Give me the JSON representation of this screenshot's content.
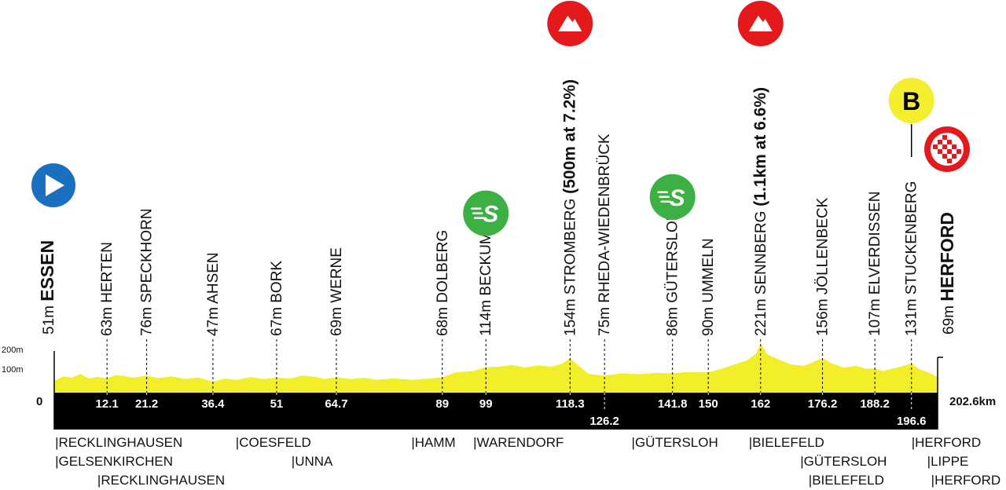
{
  "chart_data": {
    "type": "area",
    "title": "",
    "total_distance_label": "202.6km",
    "start_km_label": "0",
    "y_axis_ticks": [
      "200m",
      "100m"
    ],
    "ylim": [
      0,
      200
    ],
    "xlim": [
      0,
      202.6
    ],
    "colors": {
      "profile": "#f3ee2a",
      "base": "#000000",
      "sprint": "#3cb043",
      "climb": "#e3191b",
      "start": "#1a6fbe",
      "bonus": "#f5ee2e"
    },
    "start": {
      "km": 0,
      "altitude": "51m",
      "name": "ESSEN",
      "icon": "play-icon"
    },
    "finish": {
      "km": 202.6,
      "altitude": "69m",
      "name": "HERFORD",
      "icon": "checkered-flag-icon"
    },
    "places": [
      {
        "km": 12.1,
        "km_label": "12.1",
        "altitude": "63m",
        "name": "HERTEN"
      },
      {
        "km": 21.2,
        "km_label": "21.2",
        "altitude": "76m",
        "name": "SPECKHORN"
      },
      {
        "km": 36.4,
        "km_label": "36.4",
        "altitude": "47m",
        "name": "AHSEN"
      },
      {
        "km": 51,
        "km_label": "51",
        "altitude": "67m",
        "name": "BORK"
      },
      {
        "km": 64.7,
        "km_label": "64.7",
        "altitude": "69m",
        "name": "WERNE"
      },
      {
        "km": 89,
        "km_label": "89",
        "altitude": "68m",
        "name": "DOLBERG"
      },
      {
        "km": 99,
        "km_label": "99",
        "altitude": "114m",
        "name": "BECKUM",
        "marker": "sprint"
      },
      {
        "km": 118.3,
        "km_label": "118.3",
        "altitude": "154m",
        "name": "STROMBERG",
        "climb": "(500m at 7.2%)",
        "marker": "climb"
      },
      {
        "km": 126.2,
        "km_label": "126.2",
        "altitude": "75m",
        "name": "RHEDA-WIEDENBRÜCK",
        "low": true
      },
      {
        "km": 141.8,
        "km_label": "141.8",
        "altitude": "86m",
        "name": "GÜTERSLOH",
        "marker": "sprint"
      },
      {
        "km": 150,
        "km_label": "150",
        "altitude": "90m",
        "name": "UMMELN"
      },
      {
        "km": 162,
        "km_label": "162",
        "altitude": "221m",
        "name": "SENNBERG",
        "climb": "(1.1km at 6.6%)",
        "marker": "climb"
      },
      {
        "km": 176.2,
        "km_label": "176.2",
        "altitude": "156m",
        "name": "JÖLLENBECK"
      },
      {
        "km": 188.2,
        "km_label": "188.2",
        "altitude": "107m",
        "name": "ELVERDISSEN"
      },
      {
        "km": 196.6,
        "km_label": "196.6",
        "altitude": "131m",
        "name": "STUCKENBERG",
        "low": true,
        "marker": "bonus"
      }
    ],
    "markers": {
      "sprint_label": "S",
      "bonus_label": "B"
    },
    "profile": [
      [
        0,
        51
      ],
      [
        2,
        72
      ],
      [
        4,
        66
      ],
      [
        6,
        83
      ],
      [
        8,
        62
      ],
      [
        10,
        70
      ],
      [
        12.1,
        63
      ],
      [
        14,
        78
      ],
      [
        16,
        74
      ],
      [
        18,
        66
      ],
      [
        21.2,
        76
      ],
      [
        24,
        64
      ],
      [
        27,
        72
      ],
      [
        30,
        60
      ],
      [
        33,
        67
      ],
      [
        36.4,
        47
      ],
      [
        39,
        62
      ],
      [
        42,
        56
      ],
      [
        45,
        69
      ],
      [
        48,
        60
      ],
      [
        51,
        67
      ],
      [
        54,
        62
      ],
      [
        57,
        76
      ],
      [
        60,
        70
      ],
      [
        62,
        60
      ],
      [
        64.7,
        69
      ],
      [
        68,
        60
      ],
      [
        71,
        66
      ],
      [
        74,
        57
      ],
      [
        78,
        63
      ],
      [
        82,
        57
      ],
      [
        86,
        62
      ],
      [
        89,
        68
      ],
      [
        92,
        90
      ],
      [
        96,
        96
      ],
      [
        99,
        114
      ],
      [
        102,
        116
      ],
      [
        105,
        124
      ],
      [
        108,
        112
      ],
      [
        111,
        122
      ],
      [
        114,
        116
      ],
      [
        116.5,
        130
      ],
      [
        118.3,
        154
      ],
      [
        120,
        126
      ],
      [
        122.5,
        84
      ],
      [
        126.2,
        75
      ],
      [
        130,
        86
      ],
      [
        134,
        82
      ],
      [
        138,
        88
      ],
      [
        141.8,
        86
      ],
      [
        145,
        92
      ],
      [
        150,
        90
      ],
      [
        153,
        106
      ],
      [
        156,
        126
      ],
      [
        159,
        146
      ],
      [
        161,
        176
      ],
      [
        162,
        221
      ],
      [
        163.5,
        172
      ],
      [
        166,
        150
      ],
      [
        169,
        126
      ],
      [
        172,
        120
      ],
      [
        174,
        136
      ],
      [
        176.2,
        156
      ],
      [
        178,
        134
      ],
      [
        181,
        112
      ],
      [
        184,
        120
      ],
      [
        186,
        108
      ],
      [
        188.2,
        107
      ],
      [
        190,
        96
      ],
      [
        192,
        106
      ],
      [
        194.5,
        118
      ],
      [
        196.6,
        131
      ],
      [
        198.5,
        104
      ],
      [
        200.5,
        90
      ],
      [
        202.6,
        69
      ]
    ],
    "regions": [
      {
        "text": "|RECKLINGHAUSEN",
        "row": 0,
        "km": 0.2
      },
      {
        "text": "|GELSENKIRCHEN",
        "row": 1,
        "km": 0.2
      },
      {
        "text": "|RECKLINGHAUSEN",
        "row": 2,
        "km": 9.9
      },
      {
        "text": "|COESFELD",
        "row": 0,
        "km": 41.6
      },
      {
        "text": "|UNNA",
        "row": 1,
        "km": 54.4
      },
      {
        "text": "|HAMM",
        "row": 0,
        "km": 81.9
      },
      {
        "text": "|WARENDORF",
        "row": 0,
        "km": 96.1
      },
      {
        "text": "|GÜTERSLOH",
        "row": 0,
        "km": 132.4
      },
      {
        "text": "|BIELEFELD",
        "row": 0,
        "km": 159.3
      },
      {
        "text": "|GÜTERSLOH",
        "row": 1,
        "km": 171.1
      },
      {
        "text": "|BIELEFELD",
        "row": 2,
        "km": 173.0
      },
      {
        "text": "|HERFORD",
        "row": 0,
        "km": 196.6
      },
      {
        "text": "|LIPPE",
        "row": 1,
        "km": 200.2
      },
      {
        "text": "|HERFORD",
        "row": 2,
        "km": 201.1
      }
    ]
  }
}
